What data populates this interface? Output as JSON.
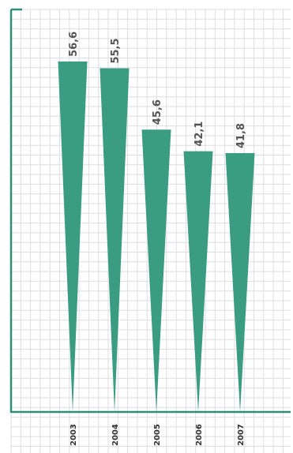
{
  "chart_data": {
    "type": "bar",
    "categories": [
      "2003",
      "2004",
      "2005",
      "2006",
      "2007"
    ],
    "values": [
      56.6,
      55.5,
      45.6,
      42.1,
      41.8
    ],
    "value_labels": [
      "56,6",
      "55,5",
      "45,6",
      "42,1",
      "41,8"
    ],
    "ylim": [
      0,
      65
    ],
    "grid": true,
    "bar_shape": "inverted-triangle",
    "colors": {
      "bar": "#3a9c80",
      "axis": "#2f8f73",
      "grid": "#dedede"
    }
  }
}
